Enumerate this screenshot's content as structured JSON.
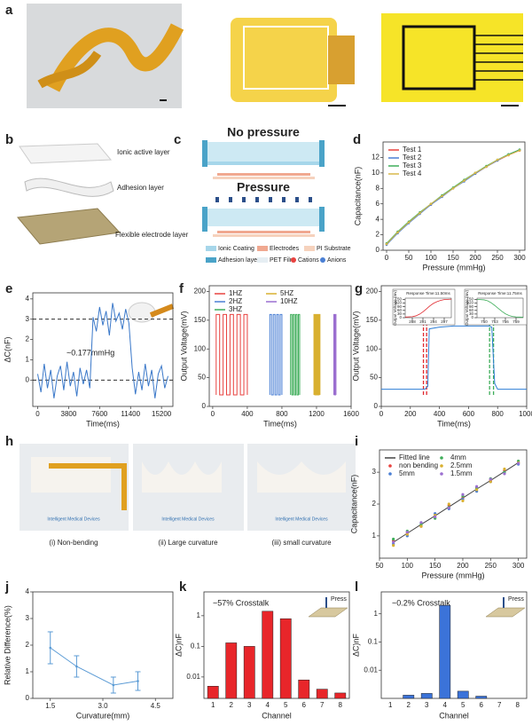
{
  "panel_labels": [
    "a",
    "b",
    "c",
    "d",
    "e",
    "f",
    "g",
    "h",
    "i",
    "j",
    "k",
    "l"
  ],
  "panel_b": {
    "layers": [
      "Ionic active layer",
      "Adhesion layer",
      "Flexible electrode layer"
    ]
  },
  "panel_c": {
    "states": [
      "No pressure",
      "Pressure"
    ],
    "legend": [
      "Ionic Coating",
      "Electrodes",
      "PI Substrate",
      "Adhesion layer",
      "PET Film",
      "Cations",
      "Anions"
    ]
  },
  "panel_h": {
    "captions": [
      "(i) Non-bending",
      "(ii) Large curvature",
      "(iii) small curvature"
    ],
    "logo": "Intelligent Medical Devices"
  },
  "chart_data": [
    {
      "type": "line",
      "x_label": "Pressure (mmHg)",
      "y_label": "Capacitance(nF)",
      "markers": true,
      "legend": "upper left",
      "legend_columns": 1,
      "x": [
        0,
        25,
        50,
        75,
        100,
        125,
        150,
        175,
        200,
        225,
        250,
        275,
        300
      ],
      "series": [
        {
          "name": "Test 1",
          "color": "#e8423f",
          "values": [
            0.8,
            2.3,
            3.6,
            4.8,
            5.9,
            7.0,
            8.0,
            9.0,
            9.9,
            10.8,
            11.6,
            12.3,
            12.9
          ]
        },
        {
          "name": "Test 2",
          "color": "#4a7fd4",
          "values": [
            0.7,
            2.2,
            3.5,
            4.7,
            5.9,
            6.9,
            8.0,
            8.9,
            9.9,
            10.8,
            11.6,
            12.4,
            13.0
          ]
        },
        {
          "name": "Test 3",
          "color": "#3fae5a",
          "values": [
            0.9,
            2.4,
            3.7,
            4.9,
            6.0,
            7.1,
            8.1,
            9.1,
            10.0,
            10.9,
            11.7,
            12.4,
            13.0
          ]
        },
        {
          "name": "Test 4",
          "color": "#d9b84a",
          "values": [
            0.8,
            2.3,
            3.6,
            4.8,
            6.0,
            7.0,
            8.0,
            9.0,
            10.0,
            10.8,
            11.7,
            12.3,
            12.9
          ]
        }
      ],
      "xlim": [
        -8,
        312
      ],
      "xticks": [
        0,
        50,
        100,
        150,
        200,
        250,
        300
      ],
      "ylim": [
        0,
        14
      ],
      "yticks": [
        0,
        2,
        4,
        6,
        8,
        10,
        12
      ]
    },
    {
      "type": "line",
      "x_label": "Time(ms)",
      "y_label": "ΔC(nF)",
      "annotation": "~0.177mmHg",
      "reference_lines": [
        0,
        3
      ],
      "x": [
        0,
        400,
        800,
        1200,
        1600,
        2000,
        2400,
        2800,
        3200,
        3600,
        4000,
        4400,
        4800,
        5200,
        5600,
        6000,
        6400,
        6800,
        7200,
        7600,
        8000,
        8400,
        8800,
        9200,
        9600,
        10000,
        10400,
        10800,
        11200,
        11600,
        12000,
        12400,
        12800,
        13200,
        13600,
        14000,
        14400,
        14800,
        15200,
        15600,
        16000
      ],
      "series": [
        {
          "color": "#3a78c9",
          "values": [
            0.3,
            -0.6,
            0.8,
            -0.4,
            0.5,
            -0.9,
            0.2,
            0.7,
            -0.5,
            0.9,
            -0.3,
            0.4,
            -0.8,
            0.6,
            -0.2,
            0.5,
            -0.4,
            3.1,
            2.4,
            3.6,
            2.7,
            3.4,
            2.2,
            3.8,
            2.9,
            3.3,
            2.5,
            3.5,
            2.8,
            0.6,
            -0.7,
            0.4,
            -0.5,
            0.8,
            -0.3,
            0.5,
            -0.9,
            0.3,
            0.7,
            -0.4,
            0.2
          ]
        }
      ],
      "xlim": [
        -600,
        16600
      ],
      "xticks": [
        0,
        3800,
        7600,
        11400,
        15200
      ],
      "ylim": [
        -1.3,
        4.3
      ],
      "yticks": [
        0,
        1,
        2,
        3,
        4
      ]
    },
    {
      "type": "line",
      "x_label": "Time(ms)",
      "y_label": "Output Voltage(mV)",
      "legend": "upper left",
      "legend_columns": 2,
      "series": [
        {
          "name": "1HZ",
          "color": "#e8423f",
          "x": [
            40,
            40,
            80,
            80,
            120,
            120,
            160,
            160,
            200,
            200,
            240,
            240,
            280,
            280,
            320,
            320,
            360,
            360,
            400,
            400
          ],
          "values": [
            20,
            160,
            160,
            20,
            20,
            160,
            160,
            20,
            20,
            160,
            160,
            20,
            20,
            160,
            160,
            20,
            20,
            160,
            160,
            20
          ]
        },
        {
          "name": "2HZ",
          "color": "#4a7fd4",
          "x": [
            660,
            660,
            680,
            680,
            700,
            700,
            720,
            720,
            740,
            740,
            760,
            760,
            780,
            780,
            800,
            800
          ],
          "values": [
            20,
            160,
            160,
            20,
            20,
            160,
            160,
            20,
            20,
            160,
            160,
            20,
            20,
            160,
            160,
            20
          ]
        },
        {
          "name": "3HZ",
          "color": "#3fae5a",
          "x": [
            900,
            900,
            915,
            915,
            930,
            930,
            945,
            945,
            960,
            960,
            975,
            975,
            990,
            990,
            1005,
            1005
          ],
          "values": [
            20,
            160,
            160,
            20,
            20,
            160,
            160,
            20,
            20,
            160,
            160,
            20,
            20,
            160,
            160,
            20
          ]
        },
        {
          "name": "5HZ",
          "color": "#d9b030",
          "x": [
            1170,
            1170,
            1180,
            1180,
            1190,
            1190,
            1200,
            1200,
            1210,
            1210,
            1220,
            1220,
            1230,
            1230,
            1240,
            1240
          ],
          "values": [
            20,
            160,
            160,
            20,
            20,
            160,
            160,
            20,
            20,
            160,
            160,
            20,
            20,
            160,
            160,
            20
          ]
        },
        {
          "name": "10HZ",
          "color": "#9b6fd0",
          "x": [
            1400,
            1400,
            1405,
            1405,
            1410,
            1410,
            1415,
            1415,
            1420,
            1420,
            1425,
            1425
          ],
          "values": [
            20,
            160,
            160,
            20,
            20,
            160,
            160,
            20,
            20,
            160,
            160,
            20
          ]
        }
      ],
      "xlim": [
        -40,
        1600
      ],
      "xticks": [
        0,
        400,
        800,
        1200,
        1600
      ],
      "ylim": [
        0,
        210
      ],
      "yticks": [
        0,
        50,
        100,
        150,
        200
      ]
    },
    {
      "type": "line",
      "x_label": "Time(ms)",
      "y_label": "Output Voltage(mV)",
      "vlines": [
        {
          "x": 290,
          "color": "#e0282e"
        },
        {
          "x": 312,
          "color": "#e0282e"
        },
        {
          "x": 745,
          "color": "#3fae5a"
        },
        {
          "x": 772,
          "color": "#3fae5a"
        }
      ],
      "x": [
        0,
        280,
        300,
        320,
        330,
        400,
        500,
        600,
        700,
        740,
        760,
        780,
        800,
        1000
      ],
      "series": [
        {
          "color": "#2f7fd6",
          "values": [
            30,
            30,
            30,
            35,
            135,
            138,
            140,
            140,
            140,
            140,
            138,
            40,
            30,
            30
          ]
        }
      ],
      "xlim": [
        0,
        1000
      ],
      "xticks": [
        0,
        200,
        400,
        600,
        800,
        1000
      ],
      "ylim": [
        0,
        210
      ],
      "yticks": [
        0,
        50,
        100,
        150,
        200
      ]
    },
    {
      "type": "line",
      "title": "Response Time:11.50ms",
      "y_label": "Output Voltage (mv)",
      "x": [
        286,
        288,
        289,
        290,
        291,
        292,
        293,
        294,
        295,
        296,
        297,
        299
      ],
      "series": [
        {
          "color": "#e0282e",
          "values": [
            5,
            8,
            15,
            28,
            48,
            72,
            98,
            118,
            132,
            142,
            148,
            152
          ]
        }
      ],
      "xlim": [
        286,
        299
      ],
      "xticks": [
        288,
        291,
        294,
        297
      ],
      "ylim": [
        0,
        160
      ],
      "yticks": [
        0,
        30,
        60,
        90,
        120,
        150
      ]
    },
    {
      "type": "line",
      "title": "Response Time:11.75ms",
      "y_label": "Output Voltage (mv)",
      "x": [
        748,
        750,
        751,
        752,
        753,
        754,
        755,
        756,
        757,
        758,
        759,
        761
      ],
      "series": [
        {
          "color": "#3fae5a",
          "values": [
            150,
            146,
            138,
            122,
            100,
            76,
            52,
            32,
            18,
            10,
            6,
            4
          ]
        }
      ],
      "xlim": [
        748,
        761
      ],
      "xticks": [
        750,
        753,
        756,
        759
      ],
      "ylim": [
        0,
        160
      ],
      "yticks": [
        0,
        30,
        60,
        90,
        120,
        150
      ]
    },
    {
      "type": "scatter",
      "x_label": "Pressure (mmHg)",
      "y_label": "Capacitance(nF)",
      "legend": "upper left",
      "legend_columns": 2,
      "x": [
        75,
        100,
        125,
        150,
        175,
        200,
        225,
        250,
        275,
        300
      ],
      "series": [
        {
          "name": "Fitted line",
          "color": "#444444",
          "style": "line",
          "values": [
            0.8,
            1.08,
            1.36,
            1.63,
            1.91,
            2.19,
            2.47,
            2.74,
            3.02,
            3.3
          ]
        },
        {
          "name": "non bending",
          "color": "#e8423f",
          "values": [
            0.85,
            1.1,
            1.3,
            1.6,
            1.95,
            2.2,
            2.5,
            2.75,
            3.05,
            3.3
          ]
        },
        {
          "name": "5mm",
          "color": "#4a7fd4",
          "values": [
            0.75,
            1.0,
            1.4,
            1.7,
            1.85,
            2.15,
            2.4,
            2.7,
            3.0,
            3.25
          ]
        },
        {
          "name": "4mm",
          "color": "#3fae5a",
          "values": [
            0.9,
            1.15,
            1.35,
            1.55,
            1.9,
            2.25,
            2.5,
            2.8,
            3.0,
            3.35
          ]
        },
        {
          "name": "2.5mm",
          "color": "#d9b030",
          "values": [
            0.7,
            1.05,
            1.3,
            1.65,
            2.0,
            2.1,
            2.45,
            2.7,
            3.1,
            3.3
          ]
        },
        {
          "name": "1.5mm",
          "color": "#9b6fd0",
          "values": [
            0.8,
            1.12,
            1.42,
            1.6,
            1.88,
            2.3,
            2.55,
            2.78,
            2.95,
            3.28
          ]
        }
      ],
      "xlim": [
        50,
        315
      ],
      "xticks": [
        50,
        100,
        150,
        200,
        250,
        300
      ],
      "ylim": [
        0.3,
        3.7
      ],
      "yticks": [
        1,
        2,
        3
      ]
    },
    {
      "type": "line",
      "x_label": "Curvature(mm)",
      "y_label": "Relative Difference(%)",
      "markers": true,
      "x": [
        1.5,
        2.25,
        3.3,
        4.0
      ],
      "series": [
        {
          "color": "#5b9bd5",
          "values": [
            1.9,
            1.2,
            0.5,
            0.65
          ]
        }
      ],
      "errors": [
        0.6,
        0.4,
        0.3,
        0.35
      ],
      "xlim": [
        1.0,
        5.0
      ],
      "xticks": [
        1.5,
        {
          "value": 3,
          "label": "3.0"
        },
        4.5
      ],
      "ylim": [
        0,
        4
      ],
      "yticks": [
        0,
        1,
        2,
        3,
        4
      ]
    },
    {
      "type": "bar",
      "x_label": "Channel",
      "y_label": "ΔC)nF",
      "log_y": true,
      "annotation": "~57% Crosstalk",
      "inset_label": "Press",
      "categories": [
        "1",
        "2",
        "3",
        "4",
        "5",
        "6",
        "7",
        "8"
      ],
      "values": [
        0.005,
        0.13,
        0.1,
        1.4,
        0.8,
        0.008,
        0.004,
        0.003
      ],
      "color": "#e8262a",
      "ylim": [
        0.002,
        6
      ],
      "yticks": [
        0.01,
        0.1,
        1
      ]
    },
    {
      "type": "bar",
      "x_label": "Channel",
      "y_label": "ΔC)nF",
      "log_y": true,
      "annotation": "~0.2% Crosstalk",
      "inset_label": "Press",
      "categories": [
        "1",
        "2",
        "3",
        "4",
        "5",
        "6",
        "7",
        "8"
      ],
      "values": [
        null,
        0.0013,
        0.0015,
        2.0,
        0.0018,
        0.0012,
        null,
        null
      ],
      "color": "#3b73d9",
      "ylim": [
        0.001,
        6
      ],
      "yticks": [
        0.01,
        0.1,
        1
      ]
    }
  ]
}
